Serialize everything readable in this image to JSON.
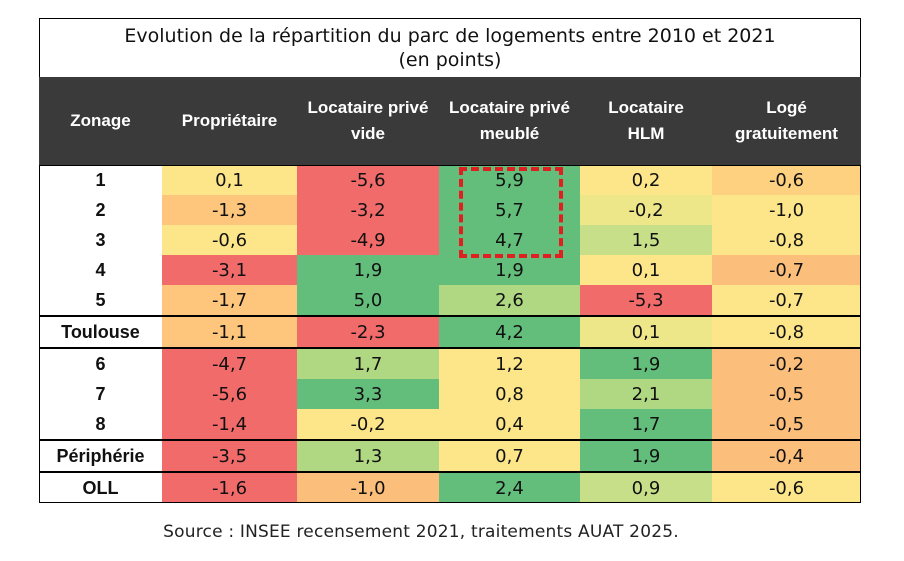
{
  "title_line1": "Evolution de la répartition du parc de logements entre 2010 et 2021",
  "title_line2": "(en points)",
  "source": "Source : INSEE recensement 2021, traitements AUAT 2025.",
  "chart_data": {
    "type": "heatmap",
    "title": "Evolution de la répartition du parc de logements entre 2010 et 2021",
    "subtitle": "(en points)",
    "columns": [
      "Zonage",
      "Propriétaire",
      "Locataire privé vide",
      "Locataire privé meublé",
      "Locataire HLM",
      "Logé gratuitement"
    ],
    "column_lines": [
      [
        "Zonage"
      ],
      [
        "Propriétaire"
      ],
      [
        "Locataire privé",
        "vide"
      ],
      [
        "Locataire privé",
        "meublé"
      ],
      [
        "Locataire",
        "HLM"
      ],
      [
        "Logé",
        "gratuitement"
      ]
    ],
    "rows": [
      {
        "zone": "1",
        "values": [
          "0,1",
          "-5,6",
          "5,9",
          "0,2",
          "-0,6"
        ],
        "colors": [
          "#fde68a",
          "#f26b6b",
          "#63be7b",
          "#fde68a",
          "#fdd17f"
        ]
      },
      {
        "zone": "2",
        "values": [
          "-1,3",
          "-3,2",
          "5,7",
          "-0,2",
          "-1,0"
        ],
        "colors": [
          "#fdc67c",
          "#f26b6b",
          "#63be7b",
          "#eee78a",
          "#fde68a"
        ]
      },
      {
        "zone": "3",
        "values": [
          "-0,6",
          "-4,9",
          "4,7",
          "1,5",
          "-0,8"
        ],
        "colors": [
          "#fde68a",
          "#f26b6b",
          "#63be7b",
          "#c8df8a",
          "#fde68a"
        ]
      },
      {
        "zone": "4",
        "values": [
          "-3,1",
          "1,9",
          "1,9",
          "0,1",
          "-0,7"
        ],
        "colors": [
          "#f26b6b",
          "#63be7b",
          "#63be7b",
          "#fde68a",
          "#fcbf7b"
        ]
      },
      {
        "zone": "5",
        "values": [
          "-1,7",
          "5,0",
          "2,6",
          "-5,3",
          "-0,7"
        ],
        "colors": [
          "#fdc67c",
          "#63be7b",
          "#b0d883",
          "#f26b6b",
          "#fde68a"
        ]
      },
      {
        "zone": "Toulouse",
        "values": [
          "-1,1",
          "-2,3",
          "4,2",
          "0,1",
          "-0,8"
        ],
        "colors": [
          "#fdc67c",
          "#f26b6b",
          "#63be7b",
          "#eee78a",
          "#fde68a"
        ]
      },
      {
        "zone": "6",
        "values": [
          "-4,7",
          "1,7",
          "1,2",
          "1,9",
          "-0,2"
        ],
        "colors": [
          "#f26b6b",
          "#b0d883",
          "#fde68a",
          "#63be7b",
          "#fcbf7b"
        ]
      },
      {
        "zone": "7",
        "values": [
          "-5,6",
          "3,3",
          "0,8",
          "2,1",
          "-0,5"
        ],
        "colors": [
          "#f26b6b",
          "#63be7b",
          "#fde68a",
          "#b0d883",
          "#fcbf7b"
        ]
      },
      {
        "zone": "8",
        "values": [
          "-1,4",
          "-0,2",
          "0,4",
          "1,7",
          "-0,5"
        ],
        "colors": [
          "#f26b6b",
          "#fde68a",
          "#fde68a",
          "#63be7b",
          "#fcbf7b"
        ]
      },
      {
        "zone": "Périphérie",
        "values": [
          "-3,5",
          "1,3",
          "0,7",
          "1,9",
          "-0,4"
        ],
        "colors": [
          "#f26b6b",
          "#b0d883",
          "#fde68a",
          "#63be7b",
          "#fcbf7b"
        ]
      },
      {
        "zone": "OLL",
        "values": [
          "-1,6",
          "-1,0",
          "2,4",
          "0,9",
          "-0,6"
        ],
        "colors": [
          "#f26b6b",
          "#fcbf7b",
          "#63be7b",
          "#c8df8a",
          "#fde68a"
        ]
      }
    ],
    "separator_before_rows": [
      "Toulouse",
      "6",
      "Périphérie",
      "OLL"
    ],
    "highlighted_cells": {
      "column": "Locataire privé meublé",
      "rows": [
        "1",
        "2",
        "3"
      ],
      "style": "red dashed box"
    },
    "header_background": "#3a3a3a",
    "header_text_color": "#ffffff"
  }
}
